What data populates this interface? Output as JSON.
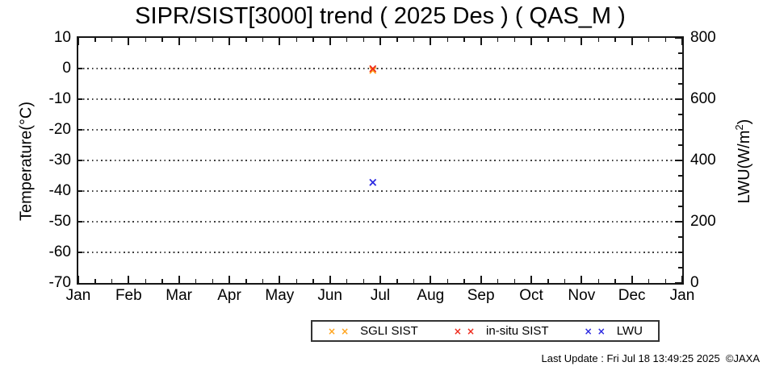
{
  "footer": "Last Update : Fri Jul 18 13:49:25 2025  ©JAXA",
  "chart_data": {
    "type": "scatter",
    "title": "SIPR/SIST[3000] trend ( 2025 Des ) ( QAS_M )",
    "x_axis": {
      "tick_labels": [
        "Jan",
        "Feb",
        "Mar",
        "Apr",
        "May",
        "Jun",
        "Jul",
        "Aug",
        "Sep",
        "Oct",
        "Nov",
        "Dec",
        "Jan"
      ],
      "minor_ticks_per_interval": 2,
      "range_days": [
        0,
        365
      ]
    },
    "y_left": {
      "label": "Temperature(°C)",
      "ticks": [
        10,
        0,
        -10,
        -20,
        -30,
        -40,
        -50,
        -60,
        -70
      ],
      "range": [
        -70,
        10
      ],
      "gridlines": [
        0,
        -10,
        -20,
        -30,
        -40,
        -50,
        -60
      ],
      "grid_style": "dotted"
    },
    "y_right": {
      "label": "LWU(W/m2)",
      "label_prefix": "LWU(W/m",
      "label_sup": "2",
      "label_suffix": ")",
      "ticks": [
        800,
        600,
        400,
        200,
        0
      ],
      "minor_step": 50,
      "range": [
        0,
        800
      ]
    },
    "series": [
      {
        "name": "SGLI SIST",
        "marker": "x",
        "color": "#FFA41E",
        "axis": "temp",
        "points": [
          {
            "day_of_year": 178,
            "value": -0.9
          }
        ]
      },
      {
        "name": "in-situ SIST",
        "marker": "x",
        "color": "#EE2A1C",
        "axis": "temp",
        "points": [
          {
            "day_of_year": 178,
            "value": -0.3
          }
        ]
      },
      {
        "name": "LWU",
        "marker": "x",
        "color": "#2B28E0",
        "axis": "lwu",
        "points": [
          {
            "day_of_year": 178,
            "value": 326
          }
        ]
      }
    ],
    "legend_position": "bottom-center-below-plot",
    "grid": true
  }
}
